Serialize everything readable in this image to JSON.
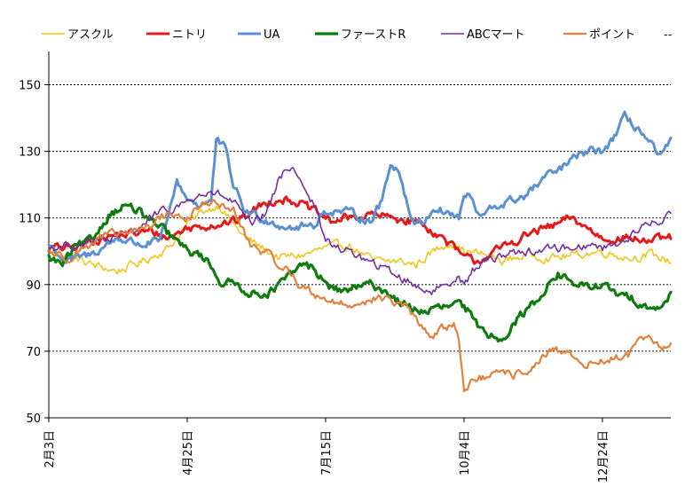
{
  "chart_data": {
    "type": "line",
    "title": "",
    "xlabel": "",
    "ylabel": "",
    "ylim": [
      50,
      160
    ],
    "yticks": [
      50,
      70,
      90,
      110,
      130,
      150
    ],
    "grid": "horizontal dashed at y ticks",
    "legend_position": "top",
    "x_tick_labels": [
      "2月3日",
      "4月25日",
      "7月15日",
      "10月4日",
      "12月24日"
    ],
    "x_tick_index": [
      0,
      81,
      162,
      243,
      324
    ],
    "n_points": 365,
    "legend_more": "--",
    "series": [
      {
        "name": "アスクル",
        "color": "#F2C41A",
        "width": 1.6,
        "keypoints": [
          [
            0,
            100
          ],
          [
            10,
            99
          ],
          [
            25,
            96
          ],
          [
            40,
            94
          ],
          [
            55,
            97
          ],
          [
            70,
            101
          ],
          [
            81,
            108
          ],
          [
            90,
            112
          ],
          [
            100,
            114
          ],
          [
            105,
            110
          ],
          [
            115,
            104
          ],
          [
            125,
            101
          ],
          [
            135,
            98
          ],
          [
            150,
            99
          ],
          [
            162,
            101
          ],
          [
            175,
            102
          ],
          [
            190,
            97
          ],
          [
            205,
            97
          ],
          [
            215,
            96
          ],
          [
            225,
            100
          ],
          [
            235,
            103
          ],
          [
            243,
            100
          ],
          [
            255,
            99
          ],
          [
            265,
            97
          ],
          [
            280,
            99
          ],
          [
            295,
            98
          ],
          [
            310,
            99
          ],
          [
            324,
            100
          ],
          [
            340,
            98
          ],
          [
            352,
            99
          ],
          [
            364,
            97
          ]
        ]
      },
      {
        "name": "ニトリ",
        "color": "#E31A1C",
        "width": 3,
        "keypoints": [
          [
            0,
            101
          ],
          [
            15,
            101
          ],
          [
            30,
            104
          ],
          [
            45,
            105
          ],
          [
            60,
            106
          ],
          [
            70,
            104
          ],
          [
            81,
            107
          ],
          [
            95,
            108
          ],
          [
            110,
            109
          ],
          [
            125,
            114
          ],
          [
            135,
            116
          ],
          [
            145,
            115
          ],
          [
            155,
            112
          ],
          [
            165,
            109
          ],
          [
            175,
            110
          ],
          [
            190,
            111
          ],
          [
            200,
            110
          ],
          [
            215,
            109
          ],
          [
            225,
            106
          ],
          [
            235,
            102
          ],
          [
            243,
            98
          ],
          [
            250,
            97
          ],
          [
            262,
            100
          ],
          [
            272,
            103
          ],
          [
            285,
            106
          ],
          [
            298,
            108
          ],
          [
            305,
            110
          ],
          [
            312,
            108
          ],
          [
            318,
            106
          ],
          [
            324,
            104
          ],
          [
            340,
            104
          ],
          [
            352,
            103
          ],
          [
            364,
            104
          ]
        ]
      },
      {
        "name": "UA",
        "color": "#5B91CF",
        "width": 3,
        "keypoints": [
          [
            0,
            102
          ],
          [
            10,
            97
          ],
          [
            25,
            99
          ],
          [
            40,
            104
          ],
          [
            55,
            102
          ],
          [
            65,
            103
          ],
          [
            70,
            110
          ],
          [
            75,
            121
          ],
          [
            81,
            116
          ],
          [
            88,
            114
          ],
          [
            95,
            115
          ],
          [
            98,
            133
          ],
          [
            103,
            131
          ],
          [
            108,
            120
          ],
          [
            115,
            112
          ],
          [
            125,
            110
          ],
          [
            135,
            108
          ],
          [
            145,
            107
          ],
          [
            155,
            108
          ],
          [
            162,
            112
          ],
          [
            170,
            112
          ],
          [
            180,
            111
          ],
          [
            188,
            109
          ],
          [
            195,
            115
          ],
          [
            200,
            127
          ],
          [
            205,
            124
          ],
          [
            212,
            110
          ],
          [
            218,
            108
          ],
          [
            225,
            113
          ],
          [
            232,
            112
          ],
          [
            240,
            110
          ],
          [
            243,
            117
          ],
          [
            247,
            116
          ],
          [
            252,
            110
          ],
          [
            260,
            113
          ],
          [
            270,
            115
          ],
          [
            280,
            117
          ],
          [
            290,
            122
          ],
          [
            298,
            124
          ],
          [
            305,
            127
          ],
          [
            315,
            130
          ],
          [
            324,
            130
          ],
          [
            332,
            135
          ],
          [
            337,
            140
          ],
          [
            345,
            137
          ],
          [
            352,
            132
          ],
          [
            358,
            128
          ],
          [
            364,
            133
          ]
        ]
      },
      {
        "name": "ファーストR",
        "color": "#0E7C0E",
        "width": 3.2,
        "keypoints": [
          [
            0,
            98
          ],
          [
            8,
            96
          ],
          [
            15,
            101
          ],
          [
            25,
            103
          ],
          [
            35,
            111
          ],
          [
            45,
            114
          ],
          [
            55,
            111
          ],
          [
            62,
            108
          ],
          [
            68,
            106
          ],
          [
            75,
            103
          ],
          [
            81,
            100
          ],
          [
            88,
            99
          ],
          [
            95,
            96
          ],
          [
            100,
            91
          ],
          [
            110,
            90
          ],
          [
            120,
            87
          ],
          [
            130,
            88
          ],
          [
            140,
            92
          ],
          [
            148,
            96
          ],
          [
            155,
            95
          ],
          [
            162,
            90
          ],
          [
            170,
            88
          ],
          [
            180,
            89
          ],
          [
            190,
            90
          ],
          [
            200,
            87
          ],
          [
            210,
            83
          ],
          [
            220,
            82
          ],
          [
            230,
            83
          ],
          [
            240,
            84
          ],
          [
            245,
            82
          ],
          [
            250,
            78
          ],
          [
            258,
            75
          ],
          [
            265,
            74
          ],
          [
            275,
            80
          ],
          [
            285,
            85
          ],
          [
            292,
            90
          ],
          [
            298,
            93
          ],
          [
            305,
            91
          ],
          [
            315,
            89
          ],
          [
            324,
            90
          ],
          [
            332,
            87
          ],
          [
            340,
            86
          ],
          [
            350,
            84
          ],
          [
            358,
            82
          ],
          [
            364,
            88
          ]
        ]
      },
      {
        "name": "ABCマート",
        "color": "#7030A0",
        "width": 1.6,
        "keypoints": [
          [
            0,
            101
          ],
          [
            15,
            102
          ],
          [
            30,
            103
          ],
          [
            45,
            105
          ],
          [
            55,
            108
          ],
          [
            62,
            111
          ],
          [
            70,
            112
          ],
          [
            81,
            115
          ],
          [
            90,
            117
          ],
          [
            100,
            117
          ],
          [
            110,
            114
          ],
          [
            115,
            109
          ],
          [
            120,
            108
          ],
          [
            128,
            112
          ],
          [
            135,
            122
          ],
          [
            142,
            126
          ],
          [
            148,
            121
          ],
          [
            155,
            114
          ],
          [
            162,
            103
          ],
          [
            170,
            101
          ],
          [
            180,
            99
          ],
          [
            190,
            96
          ],
          [
            200,
            94
          ],
          [
            210,
            91
          ],
          [
            218,
            89
          ],
          [
            225,
            88
          ],
          [
            232,
            90
          ],
          [
            240,
            93
          ],
          [
            243,
            90
          ],
          [
            248,
            94
          ],
          [
            255,
            97
          ],
          [
            265,
            99
          ],
          [
            275,
            100
          ],
          [
            285,
            100
          ],
          [
            295,
            101
          ],
          [
            305,
            101
          ],
          [
            315,
            102
          ],
          [
            324,
            101
          ],
          [
            335,
            103
          ],
          [
            345,
            106
          ],
          [
            352,
            109
          ],
          [
            358,
            108
          ],
          [
            364,
            112
          ]
        ]
      },
      {
        "name": "ポイント",
        "color": "#E0823D",
        "width": 2.2,
        "keypoints": [
          [
            0,
            100
          ],
          [
            10,
            98
          ],
          [
            20,
            101
          ],
          [
            30,
            104
          ],
          [
            40,
            105
          ],
          [
            50,
            106
          ],
          [
            60,
            108
          ],
          [
            65,
            110
          ],
          [
            70,
            112
          ],
          [
            75,
            110
          ],
          [
            81,
            110
          ],
          [
            88,
            113
          ],
          [
            95,
            115
          ],
          [
            100,
            114
          ],
          [
            108,
            112
          ],
          [
            112,
            108
          ],
          [
            118,
            102
          ],
          [
            125,
            100
          ],
          [
            133,
            97
          ],
          [
            140,
            94
          ],
          [
            147,
            90
          ],
          [
            155,
            87
          ],
          [
            162,
            86
          ],
          [
            170,
            84
          ],
          [
            180,
            84
          ],
          [
            190,
            86
          ],
          [
            200,
            85
          ],
          [
            210,
            83
          ],
          [
            218,
            77
          ],
          [
            225,
            75
          ],
          [
            232,
            77
          ],
          [
            237,
            78
          ],
          [
            240,
            74
          ],
          [
            242,
            64
          ],
          [
            243,
            59
          ],
          [
            248,
            61
          ],
          [
            255,
            62
          ],
          [
            265,
            63
          ],
          [
            275,
            63
          ],
          [
            285,
            66
          ],
          [
            295,
            70
          ],
          [
            305,
            69
          ],
          [
            315,
            66
          ],
          [
            324,
            67
          ],
          [
            332,
            68
          ],
          [
            340,
            69
          ],
          [
            345,
            73
          ],
          [
            352,
            73
          ],
          [
            358,
            71
          ],
          [
            364,
            72
          ]
        ]
      }
    ]
  }
}
